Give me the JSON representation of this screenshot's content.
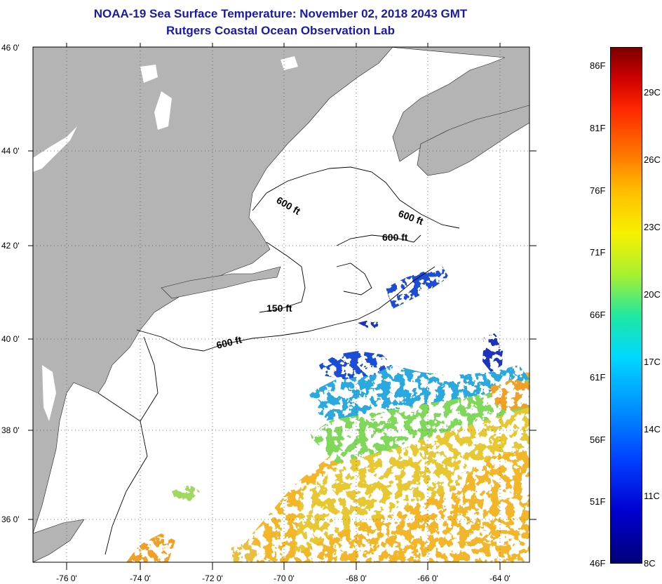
{
  "title": {
    "line1": "NOAA-19 Sea Surface Temperature:  November 02, 2018 2043 GMT",
    "line2": "Rutgers Coastal Ocean Observation Lab"
  },
  "map": {
    "lon_ticks": [
      "-76 0'",
      "-74 0'",
      "-72 0'",
      "-70 0'",
      "-68 0'",
      "-66 0'",
      "-64 0'"
    ],
    "lat_ticks": [
      "46 0'",
      "44 0'",
      "42 0'",
      "40 0'",
      "38 0'",
      "36 0'"
    ],
    "lon_range": [
      -77,
      -63
    ],
    "lat_range": [
      35,
      46
    ],
    "land_color": "#b4b4b4",
    "contour_labels": [
      "600 ft",
      "600 ft",
      "600 ft",
      "150 ft",
      "600 ft"
    ]
  },
  "colorbar": {
    "fahrenheit_labels": [
      "86F",
      "81F",
      "76F",
      "71F",
      "66F",
      "61F",
      "56F",
      "51F",
      "46F"
    ],
    "celsius_labels": [
      "29C",
      "26C",
      "23C",
      "20C",
      "17C",
      "14C",
      "11C",
      "8C"
    ],
    "range_celsius": [
      8,
      31
    ],
    "colors": [
      "#00007a",
      "#0000d0",
      "#0090ff",
      "#00d8ff",
      "#a8f030",
      "#f8f000",
      "#ffc000",
      "#ff2800",
      "#7a0000"
    ]
  }
}
